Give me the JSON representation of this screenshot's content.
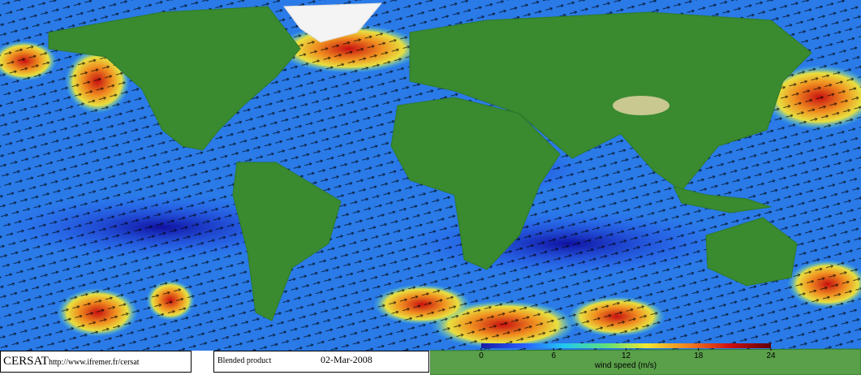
{
  "footer": {
    "logo": "CERSAT",
    "url": "http://www.ifremer.fr/cersat",
    "product": "Blended product",
    "date": "02-Mar-2008"
  },
  "legend": {
    "label": "wind speed (m/s)",
    "range": [
      0,
      24
    ],
    "ticks": [
      0,
      6,
      12,
      18,
      24
    ],
    "colors": [
      "#1a1aa0",
      "#2a5cff",
      "#22c8f0",
      "#5ee07a",
      "#f0e830",
      "#f08020",
      "#d01010",
      "#600000"
    ]
  }
}
